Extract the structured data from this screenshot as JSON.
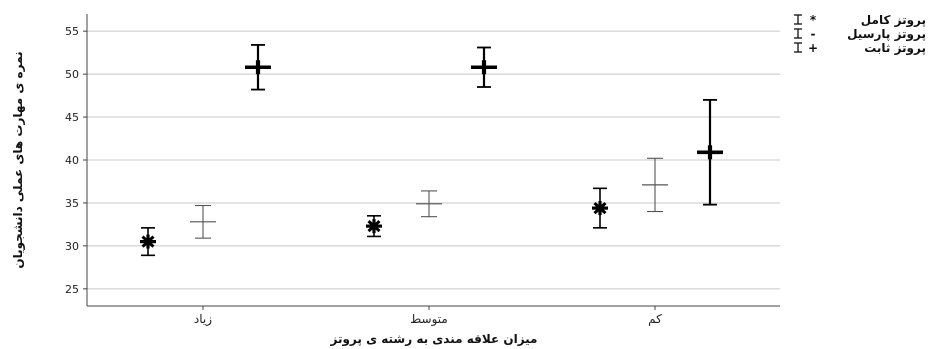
{
  "chart_data": {
    "type": "scatter",
    "subtype": "error-bar",
    "xlabel": "میزان علاقه مندی به رشته ی پروتز",
    "ylabel": "نمره ی مهارت های عملی دانشجویان",
    "categories": [
      "زیاد",
      "متوسط",
      "کم"
    ],
    "y_ticks": [
      25,
      30,
      35,
      40,
      45,
      50,
      55
    ],
    "ylim": [
      23,
      57
    ],
    "grid": "horizontal",
    "legend_position": "top-right",
    "series": [
      {
        "name": "پروتز کامل",
        "marker_symbol": "*",
        "color": "#000000",
        "points": [
          {
            "category": "زیاد",
            "mean": 30.5,
            "lower": 28.9,
            "upper": 32.1
          },
          {
            "category": "متوسط",
            "mean": 32.3,
            "lower": 31.1,
            "upper": 33.5
          },
          {
            "category": "کم",
            "mean": 34.4,
            "lower": 32.1,
            "upper": 36.7
          }
        ]
      },
      {
        "name": "پروتز پارسیل",
        "marker_symbol": "-",
        "color": "#555555",
        "points": [
          {
            "category": "زیاد",
            "mean": 32.8,
            "lower": 30.9,
            "upper": 34.7
          },
          {
            "category": "متوسط",
            "mean": 34.9,
            "lower": 33.4,
            "upper": 36.4
          },
          {
            "category": "کم",
            "mean": 37.1,
            "lower": 34.0,
            "upper": 40.2
          }
        ]
      },
      {
        "name": "پروتز ثابت",
        "marker_symbol": "+",
        "color": "#000000",
        "points": [
          {
            "category": "زیاد",
            "mean": 50.8,
            "lower": 48.2,
            "upper": 53.4
          },
          {
            "category": "متوسط",
            "mean": 50.8,
            "lower": 48.5,
            "upper": 53.1
          },
          {
            "category": "کم",
            "mean": 40.9,
            "lower": 34.8,
            "upper": 47.0
          }
        ]
      }
    ]
  }
}
